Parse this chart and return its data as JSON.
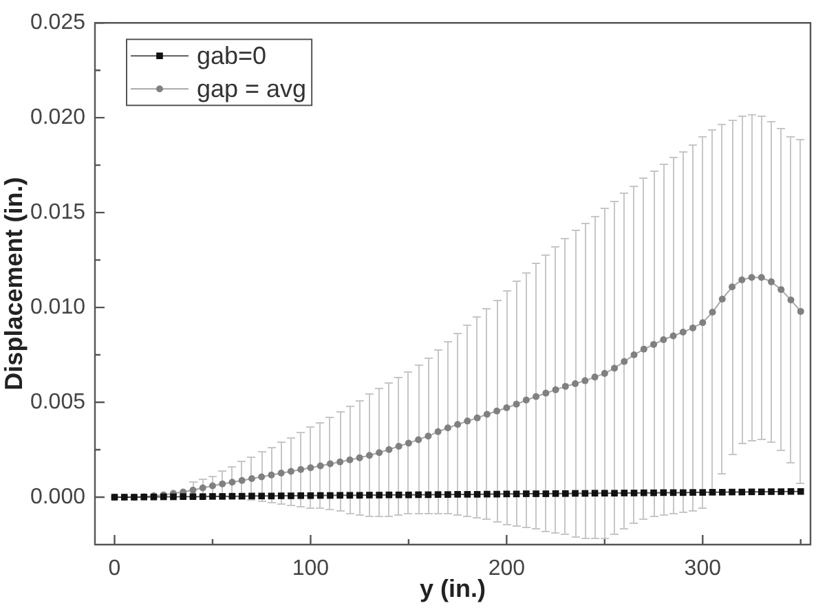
{
  "chart_data": {
    "type": "line",
    "xlabel": "y (in.)",
    "ylabel": "Displacement (in.)",
    "x": [
      0,
      5,
      10,
      15,
      20,
      25,
      30,
      35,
      40,
      45,
      50,
      55,
      60,
      65,
      70,
      75,
      80,
      85,
      90,
      95,
      100,
      105,
      110,
      115,
      120,
      125,
      130,
      135,
      140,
      145,
      150,
      155,
      160,
      165,
      170,
      175,
      180,
      185,
      190,
      195,
      200,
      205,
      210,
      215,
      220,
      225,
      230,
      235,
      240,
      245,
      250,
      255,
      260,
      265,
      270,
      275,
      280,
      285,
      290,
      295,
      300,
      305,
      310,
      315,
      320,
      325,
      330,
      335,
      340,
      345,
      350
    ],
    "series": [
      {
        "name": "gab=0",
        "color": "#111111",
        "marker": "square",
        "values": [
          0,
          0,
          0,
          1e-05,
          1e-05,
          2e-05,
          2e-05,
          3e-05,
          3e-05,
          3e-05,
          4e-05,
          4e-05,
          5e-05,
          5e-05,
          6e-05,
          6e-05,
          6e-05,
          7e-05,
          7e-05,
          8e-05,
          8e-05,
          9e-05,
          9e-05,
          0.0001,
          0.0001,
          0.0001,
          0.00011,
          0.00011,
          0.00012,
          0.00012,
          0.00012,
          0.00013,
          0.00013,
          0.00014,
          0.00014,
          0.00015,
          0.00015,
          0.00015,
          0.00016,
          0.00016,
          0.00017,
          0.00017,
          0.00018,
          0.00018,
          0.00018,
          0.00019,
          0.00019,
          0.0002,
          0.0002,
          0.00021,
          0.00021,
          0.00021,
          0.00022,
          0.00022,
          0.00023,
          0.00023,
          0.00024,
          0.00024,
          0.00024,
          0.00025,
          0.00025,
          0.00026,
          0.00026,
          0.00027,
          0.00027,
          0.00028,
          0.00028,
          0.00029,
          0.00029,
          0.0003,
          0.0003
        ]
      },
      {
        "name": "gap = avg",
        "color": "#808080",
        "marker": "circle",
        "values": [
          0,
          0,
          0,
          2e-05,
          7e-05,
          0.00012,
          0.0002,
          0.00027,
          0.00037,
          0.00049,
          0.0006,
          0.0007,
          0.00079,
          0.00088,
          0.00098,
          0.00107,
          0.00117,
          0.00127,
          0.00136,
          0.00146,
          0.00155,
          0.00165,
          0.00176,
          0.00186,
          0.00197,
          0.00208,
          0.0022,
          0.00235,
          0.00251,
          0.00268,
          0.00285,
          0.00303,
          0.00322,
          0.00345,
          0.00365,
          0.00383,
          0.00401,
          0.00418,
          0.00437,
          0.00454,
          0.00471,
          0.0049,
          0.00512,
          0.0053,
          0.00548,
          0.00566,
          0.00584,
          0.00598,
          0.00614,
          0.00633,
          0.00652,
          0.0068,
          0.00715,
          0.0075,
          0.0078,
          0.00805,
          0.0083,
          0.0085,
          0.0087,
          0.00892,
          0.0092,
          0.00975,
          0.01044,
          0.01108,
          0.01145,
          0.01158,
          0.01158,
          0.01135,
          0.01094,
          0.01039,
          0.00979
        ],
        "errors": [
          null,
          null,
          null,
          null,
          null,
          null,
          null,
          null,
          0.0004,
          0.00045,
          0.00052,
          0.00066,
          0.00081,
          0.00098,
          0.00114,
          0.00131,
          0.00145,
          0.00161,
          0.00179,
          0.00196,
          0.00215,
          0.00224,
          0.00242,
          0.00261,
          0.00281,
          0.00301,
          0.00324,
          0.00338,
          0.00349,
          0.00365,
          0.00375,
          0.0039,
          0.00407,
          0.00431,
          0.00454,
          0.00477,
          0.00506,
          0.0053,
          0.00556,
          0.00585,
          0.00616,
          0.00645,
          0.0067,
          0.007,
          0.0073,
          0.00755,
          0.00777,
          0.00806,
          0.00831,
          0.00848,
          0.00869,
          0.00879,
          0.00885,
          0.00886,
          0.00899,
          0.0091,
          0.00921,
          0.00937,
          0.00952,
          0.00966,
          0.00978,
          0.00959,
          0.00922,
          0.00881,
          0.00864,
          0.00858,
          0.00853,
          0.00842,
          0.00845,
          0.00859,
          0.00903
        ]
      }
    ],
    "xlim": [
      -10,
      355
    ],
    "ylim": [
      -0.0025,
      0.025
    ],
    "xticks": [
      0,
      {
        "value": 50,
        "label": null
      },
      100,
      {
        "value": 150,
        "label": null
      },
      200,
      {
        "value": 250,
        "label": null
      },
      300,
      {
        "value": 350,
        "label": null
      }
    ],
    "yticks": [
      {
        "value": 0,
        "label": "0.000"
      },
      {
        "value": 0.0025,
        "label": null
      },
      {
        "value": 0.005,
        "label": "0.005"
      },
      {
        "value": 0.0075,
        "label": null
      },
      {
        "value": 0.01,
        "label": "0.010"
      },
      {
        "value": 0.0125,
        "label": null
      },
      {
        "value": 0.015,
        "label": "0.015"
      },
      {
        "value": 0.0175,
        "label": null
      },
      {
        "value": 0.02,
        "label": "0.020"
      },
      {
        "value": 0.0225,
        "label": null
      },
      {
        "value": 0.025,
        "label": "0.025"
      }
    ],
    "legend": "top left"
  }
}
